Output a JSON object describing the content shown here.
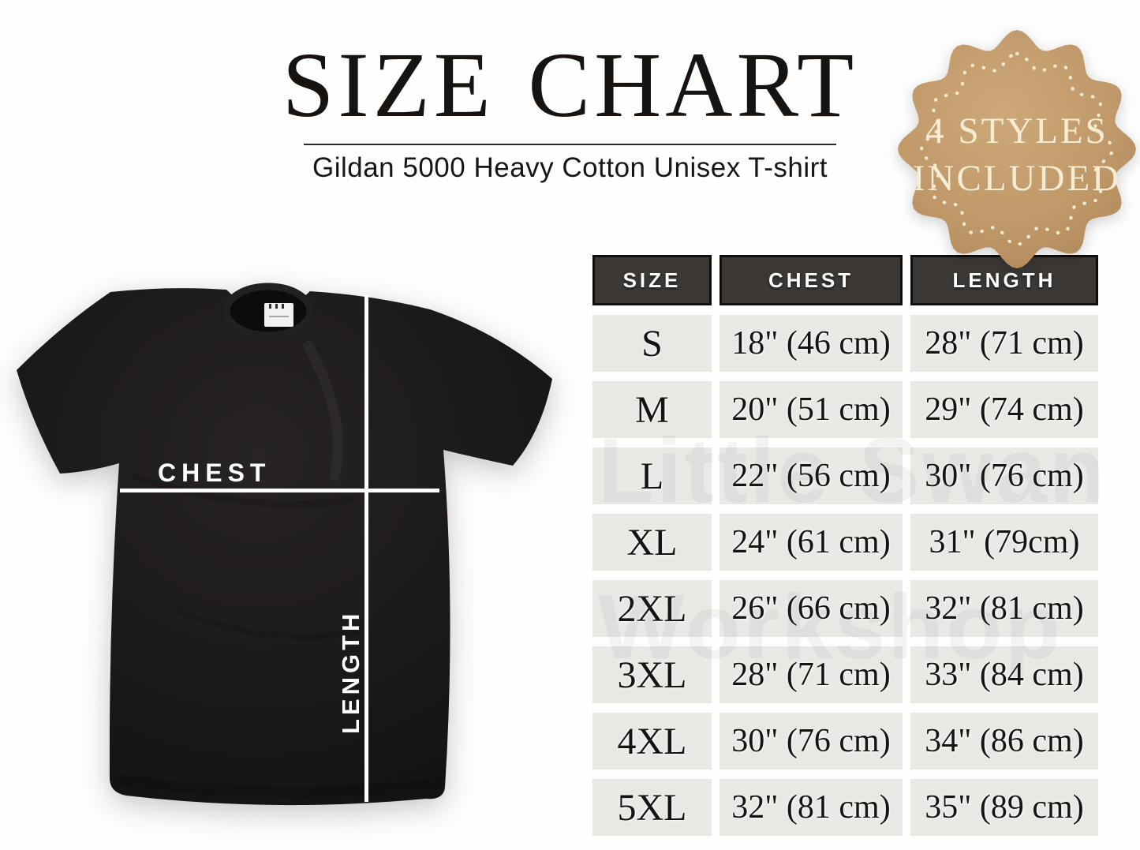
{
  "header": {
    "title": "SIZE CHART",
    "subtitle": "Gildan 5000 Heavy Cotton Unisex T-shirt"
  },
  "badge": {
    "line1": "4 STYLES",
    "line2": "INCLUDED",
    "fill": "#c0996a",
    "dot_color": "#f4e9cd",
    "text_color": "#f6ecd3"
  },
  "shirt": {
    "chest_label": "CHEST",
    "length_label": "LENGTH",
    "shirt_color": "#1b1918",
    "line_color": "#ffffff"
  },
  "watermark": {
    "line1": "Little Swan",
    "line2": "Workshop"
  },
  "table": {
    "headers": [
      "SIZE",
      "CHEST",
      "LENGTH"
    ],
    "header_bg": "#3b3836",
    "header_text_color": "#ffffff",
    "cell_bg": "#e9e8e5",
    "cell_text_color": "#141414",
    "rows": [
      {
        "size": "S",
        "chest": "18\" (46 cm)",
        "length": "28\" (71 cm)"
      },
      {
        "size": "M",
        "chest": "20\" (51 cm)",
        "length": "29\" (74 cm)"
      },
      {
        "size": "L",
        "chest": "22\" (56 cm)",
        "length": "30\" (76 cm)"
      },
      {
        "size": "XL",
        "chest": "24\" (61 cm)",
        "length": "31\" (79cm)"
      },
      {
        "size": "2XL",
        "chest": "26\" (66 cm)",
        "length": "32\" (81 cm)"
      },
      {
        "size": "3XL",
        "chest": "28\" (71 cm)",
        "length": "33\" (84 cm)"
      },
      {
        "size": "4XL",
        "chest": "30\" (76 cm)",
        "length": "34\" (86 cm)"
      },
      {
        "size": "5XL",
        "chest": "32\" (81 cm)",
        "length": "35\" (89 cm)"
      }
    ]
  },
  "chart_data": {
    "type": "table",
    "title": "SIZE CHART",
    "subtitle": "Gildan 5000 Heavy Cotton Unisex T-shirt",
    "columns": [
      "SIZE",
      "CHEST",
      "LENGTH"
    ],
    "rows": [
      [
        "S",
        "18\" (46 cm)",
        "28\" (71 cm)"
      ],
      [
        "M",
        "20\" (51 cm)",
        "29\" (74 cm)"
      ],
      [
        "L",
        "22\" (56 cm)",
        "30\" (76 cm)"
      ],
      [
        "XL",
        "24\" (61 cm)",
        "31\" (79cm)"
      ],
      [
        "2XL",
        "26\" (66 cm)",
        "32\" (81 cm)"
      ],
      [
        "3XL",
        "28\" (71 cm)",
        "33\" (84 cm)"
      ],
      [
        "4XL",
        "30\" (76 cm)",
        "34\" (86 cm)"
      ],
      [
        "5XL",
        "32\" (81 cm)",
        "35\" (89 cm)"
      ]
    ],
    "chest_inches": [
      18,
      20,
      22,
      24,
      26,
      28,
      30,
      32
    ],
    "chest_cm": [
      46,
      51,
      56,
      61,
      66,
      71,
      76,
      81
    ],
    "length_inches": [
      28,
      29,
      30,
      31,
      32,
      33,
      34,
      35
    ],
    "length_cm": [
      71,
      74,
      76,
      79,
      81,
      84,
      86,
      89
    ]
  }
}
